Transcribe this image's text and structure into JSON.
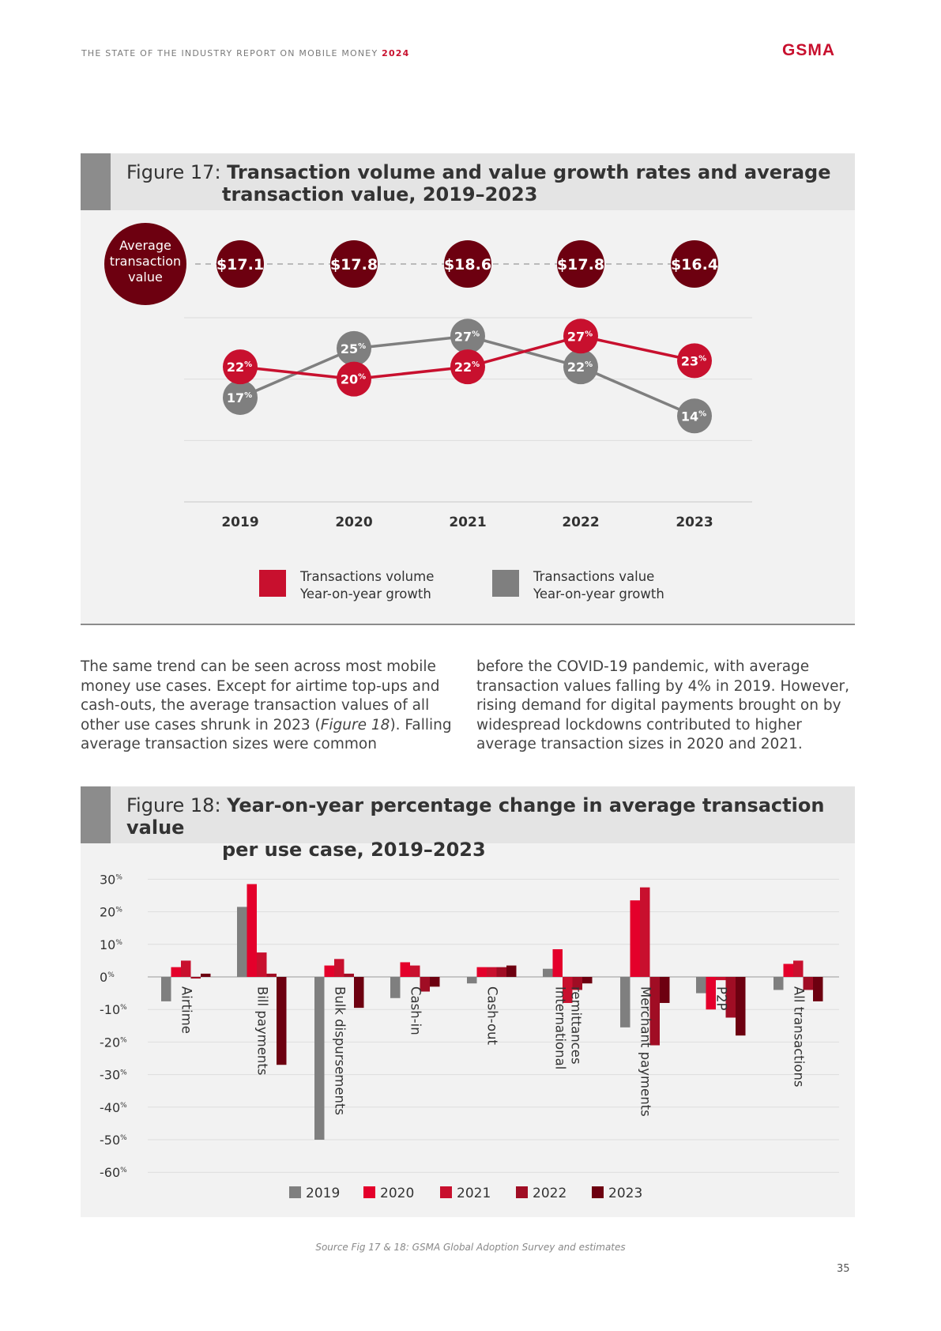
{
  "header": {
    "report_title": "THE STATE OF THE INDUSTRY REPORT ON MOBILE MONEY",
    "report_year": "2024",
    "logo_text": "GSMA"
  },
  "fig17": {
    "label": "Figure 17:",
    "title_line1": "Transaction volume and value growth rates and average",
    "title_line2": "transaction value, 2019–2023",
    "avg_label": [
      "Average",
      "transaction",
      "value"
    ]
  },
  "fig18": {
    "label": "Figure 18:",
    "title_line1": "Year-on-year percentage change in average transaction value",
    "title_line2": "per use case, 2019–2023"
  },
  "body_text": {
    "col1_a": "The same trend can be seen across most mobile money use cases. Except for airtime top-ups and cash-outs, the average transaction values of all other use cases shrunk in 2023 (",
    "col1_ref": "Figure 18",
    "col1_b": "). Falling average transaction sizes were common",
    "col2": "before the COVID-19 pandemic, with average transaction values falling by 4% in 2019. However, rising demand for digital payments brought on by widespread lockdowns contributed to higher average transaction sizes in 2020 and 2021."
  },
  "source": "Source Fig 17 & 18: GSMA Global Adoption Survey and estimates",
  "page_number": "35",
  "chart_data": [
    {
      "type": "line",
      "x": [
        "2019",
        "2020",
        "2021",
        "2022",
        "2023"
      ],
      "avg_transaction_value": [
        "$17.1",
        "$17.8",
        "$18.6",
        "$17.8",
        "$16.4"
      ],
      "series": [
        {
          "name": "Transactions volume Year-on-year growth",
          "legend": [
            "Transactions volume",
            "Year-on-year growth"
          ],
          "values": [
            22,
            20,
            22,
            27,
            23
          ],
          "color": "#c8102e"
        },
        {
          "name": "Transactions value Year-on-year growth",
          "legend": [
            "Transactions value",
            "Year-on-year growth"
          ],
          "values": [
            17,
            25,
            27,
            22,
            14
          ],
          "color": "#7f7f7f"
        }
      ],
      "unit": "%",
      "ylim": [
        0,
        30
      ],
      "grid": true,
      "legend_position": "bottom"
    },
    {
      "type": "bar",
      "categories": [
        [
          "Airtime"
        ],
        [
          "Bill payments"
        ],
        [
          "Bulk dispursements"
        ],
        [
          "Cash-in"
        ],
        [
          "Cash-out"
        ],
        [
          "International",
          "remittances"
        ],
        [
          "Merchant payments"
        ],
        [
          "P2P"
        ],
        [
          "All transactions"
        ]
      ],
      "series": [
        {
          "name": "2019",
          "color": "#7f7f7f",
          "values": [
            -7.5,
            21.5,
            -50,
            -6.5,
            -2,
            2.5,
            -15.5,
            -5,
            -4
          ]
        },
        {
          "name": "2020",
          "color": "#e4002b",
          "values": [
            3,
            28.5,
            3.5,
            4.5,
            3,
            8.5,
            23.5,
            -10,
            4
          ]
        },
        {
          "name": "2021",
          "color": "#c8102e",
          "values": [
            5,
            7.5,
            5.5,
            3.5,
            3,
            -8,
            27.5,
            -1,
            5
          ]
        },
        {
          "name": "2022",
          "color": "#a00d24",
          "values": [
            -0.5,
            1,
            1,
            -4.5,
            3,
            -4,
            -21,
            -12.5,
            -4
          ]
        },
        {
          "name": "2023",
          "color": "#6d0010",
          "values": [
            1,
            -27,
            -9.5,
            -3,
            3.5,
            -2,
            -8,
            -18,
            -7.5
          ]
        }
      ],
      "yticks": [
        "30%",
        "20%",
        "10%",
        "0%",
        "-10%",
        "-20%",
        "-30%",
        "-40%",
        "-50%",
        "-60%"
      ],
      "ylim": [
        -60,
        30
      ],
      "grid": true,
      "legend_position": "bottom"
    }
  ]
}
